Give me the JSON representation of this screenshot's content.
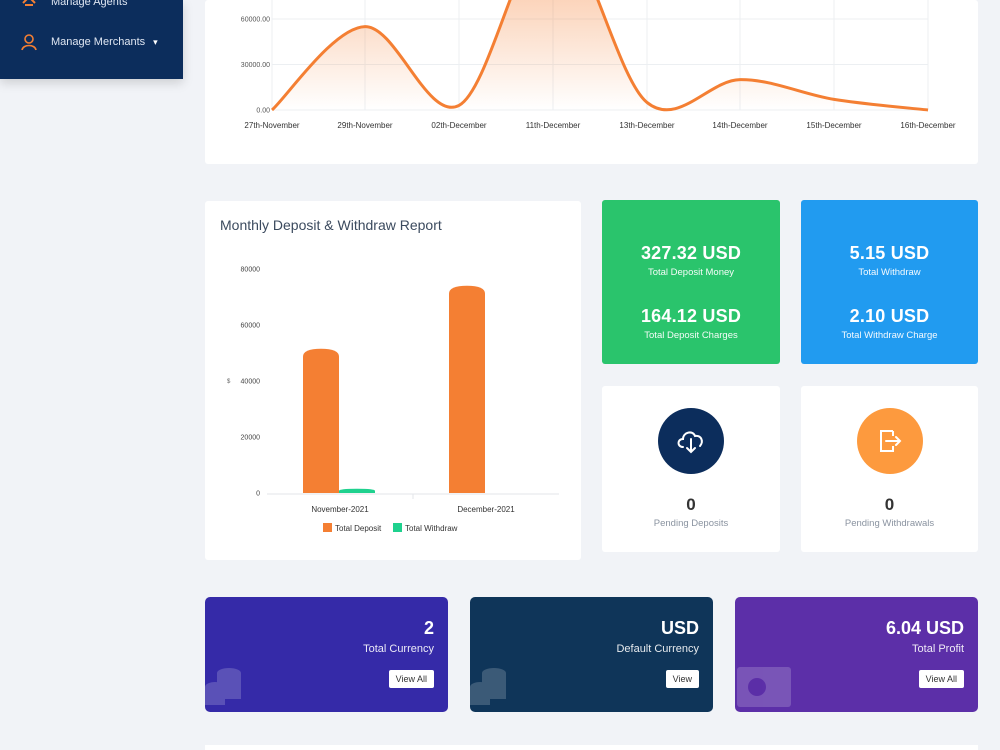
{
  "sidebar": {
    "items": [
      {
        "label": "Manage Agents",
        "icon": "agents-icon"
      },
      {
        "label": "Manage Merchants",
        "icon": "merchant-user-icon"
      }
    ]
  },
  "daily_chart": {
    "chart_data": {
      "type": "area",
      "categories": [
        "27th-November",
        "29th-November",
        "02th-December",
        "11th-December",
        "13th-December",
        "14th-December",
        "15th-December",
        "16th-December"
      ],
      "values": [
        0,
        55000,
        3000,
        120000,
        5000,
        20000,
        7000,
        0
      ],
      "y_ticks": [
        "0.00",
        "30000.00",
        "60000.00"
      ],
      "color": "#f47f33"
    }
  },
  "monthly_report": {
    "title": "Monthly Deposit & Withdraw Report",
    "chart_data": {
      "type": "bar",
      "categories": [
        "November-2021",
        "December-2021"
      ],
      "series": [
        {
          "name": "Total Deposit",
          "values": [
            51500,
            74000
          ],
          "color": "#f47f33"
        },
        {
          "name": "Total Withdraw",
          "values": [
            1500,
            0
          ],
          "color": "#1fd18e"
        }
      ],
      "ylabel": "$",
      "ylim": [
        0,
        80000
      ],
      "y_ticks": [
        "0",
        "20000",
        "40000",
        "60000",
        "80000"
      ]
    }
  },
  "stats": {
    "deposit_money": {
      "value": "327.32 USD",
      "label": "Total Deposit Money"
    },
    "deposit_charges": {
      "value": "164.12 USD",
      "label": "Total Deposit Charges"
    },
    "total_withdraw": {
      "value": "5.15 USD",
      "label": "Total Withdraw"
    },
    "withdraw_charge": {
      "value": "2.10 USD",
      "label": "Total Withdraw Charge"
    }
  },
  "pending": {
    "deposits": {
      "count": "0",
      "label": "Pending Deposits",
      "icon": "cloud-download-icon",
      "color": "#0c2d5c"
    },
    "withdrawals": {
      "count": "0",
      "label": "Pending Withdrawals",
      "icon": "exit-icon",
      "color": "#fd9a3e"
    }
  },
  "tiles": {
    "currency": {
      "value": "2",
      "label": "Total Currency",
      "button": "View All",
      "icon": "coins-icon"
    },
    "default_currency": {
      "value": "USD",
      "label": "Default Currency",
      "button": "View",
      "icon": "coins-icon"
    },
    "profit": {
      "value": "6.04 USD",
      "label": "Total Profit",
      "button": "View All",
      "icon": "banknote-icon"
    }
  }
}
